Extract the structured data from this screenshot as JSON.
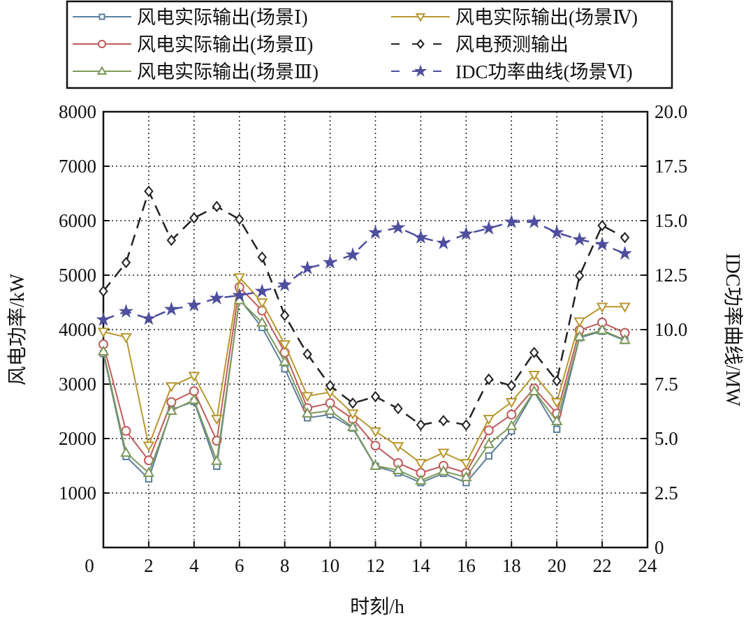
{
  "chart_data": {
    "type": "line",
    "xlabel": "时刻/h",
    "ylabel": "风电功率/kW",
    "y2label": "IDC功率曲线/MW",
    "xlim": [
      0,
      24
    ],
    "ylim": [
      0,
      8000
    ],
    "y2lim": [
      0,
      20
    ],
    "xticks": [
      "0",
      "2",
      "4",
      "6",
      "8",
      "10",
      "12",
      "14",
      "16",
      "18",
      "20",
      "22",
      "24"
    ],
    "yticks": [
      "1000",
      "2000",
      "3000",
      "4000",
      "5000",
      "6000",
      "7000",
      "8000"
    ],
    "y2ticks": [
      "0",
      "2.5",
      "5.0",
      "7.5",
      "10.0",
      "12.5",
      "15.0",
      "17.5",
      "20.0"
    ],
    "grid": true,
    "legend_position": "top",
    "x": [
      0,
      1,
      2,
      3,
      4,
      5,
      6,
      7,
      8,
      9,
      10,
      11,
      12,
      13,
      14,
      15,
      16,
      17,
      18,
      19,
      20,
      21,
      22,
      23
    ],
    "series": [
      {
        "name": "风电实际输出(场景Ⅰ)",
        "axis": "left",
        "marker": "square",
        "dash": false,
        "color": "#5b7f9c",
        "values": [
          3560,
          1670,
          1260,
          2530,
          2680,
          1490,
          4560,
          4040,
          3280,
          2380,
          2440,
          2190,
          1490,
          1370,
          1190,
          1360,
          1190,
          1680,
          2140,
          2860,
          2170,
          3850,
          3970,
          3800
        ]
      },
      {
        "name": "风电实际输出(场景Ⅱ)",
        "axis": "left",
        "marker": "circle",
        "dash": false,
        "color": "#c05a5a",
        "values": [
          3730,
          2140,
          1600,
          2670,
          2870,
          1960,
          4780,
          4350,
          3580,
          2560,
          2650,
          2360,
          1870,
          1550,
          1370,
          1500,
          1370,
          2150,
          2440,
          2920,
          2460,
          3990,
          4130,
          3940
        ]
      },
      {
        "name": "风电实际输出(场景Ⅲ)",
        "axis": "left",
        "marker": "triangle-up",
        "dash": false,
        "color": "#7e9a5c",
        "values": [
          3600,
          1740,
          1370,
          2510,
          2710,
          1590,
          4540,
          4130,
          3410,
          2460,
          2510,
          2210,
          1500,
          1420,
          1230,
          1400,
          1290,
          1900,
          2230,
          2870,
          2320,
          3870,
          3990,
          3810
        ]
      },
      {
        "name": "风电实际输出(场景Ⅳ)",
        "axis": "left",
        "marker": "triangle-down",
        "dash": false,
        "color": "#b8972f",
        "values": [
          3960,
          3860,
          1870,
          2960,
          3150,
          2360,
          4960,
          4500,
          3730,
          2780,
          2850,
          2460,
          2130,
          1860,
          1550,
          1740,
          1550,
          2360,
          2670,
          3170,
          2670,
          4150,
          4420,
          4420
        ]
      },
      {
        "name": "风电预测输出",
        "axis": "left",
        "marker": "diamond",
        "dash": true,
        "color": "#222222",
        "values": [
          4705,
          5230,
          6540,
          5640,
          6050,
          6260,
          6025,
          5330,
          4260,
          3550,
          2970,
          2650,
          2770,
          2550,
          2250,
          2330,
          2250,
          3090,
          2970,
          3580,
          3060,
          4990,
          5910,
          5690
        ]
      },
      {
        "name": "IDC功率曲线(场景Ⅵ)",
        "axis": "right",
        "marker": "star",
        "dash": true,
        "color": "#4e4e9e",
        "values": [
          10.45,
          10.83,
          10.5,
          10.93,
          11.12,
          11.44,
          11.57,
          11.76,
          12.05,
          12.82,
          13.08,
          13.43,
          14.45,
          14.68,
          14.23,
          13.97,
          14.39,
          14.65,
          14.94,
          14.94,
          14.45,
          14.13,
          13.91,
          13.49
        ]
      }
    ]
  }
}
